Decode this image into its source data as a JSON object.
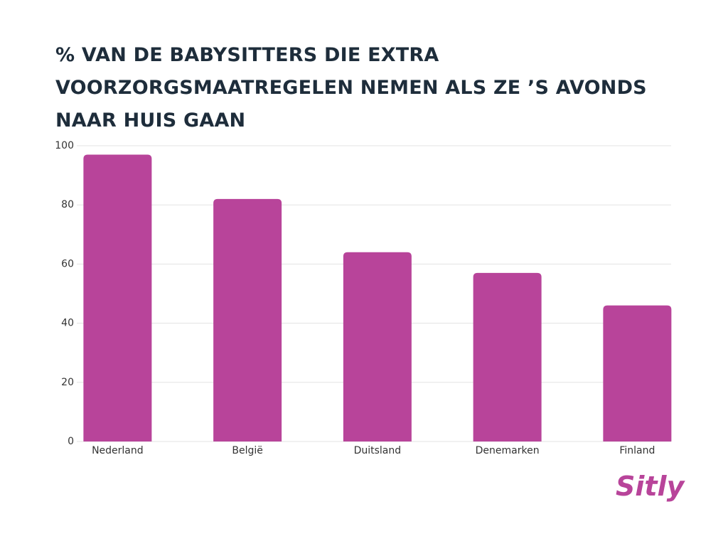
{
  "chart_data": {
    "type": "bar",
    "title": "% VAN DE BABYSITTERS DIE EXTRA VOORZORGSMAATREGELEN NEMEN ALS ZE ’S AVONDS NAAR HUIS GAAN",
    "categories": [
      "Nederland",
      "België",
      "Duitsland",
      "Denemarken",
      "Finland"
    ],
    "values": [
      97,
      82,
      64,
      57,
      46
    ],
    "color": "#b8449a",
    "ylim": [
      0,
      100
    ],
    "yticks": [
      0,
      20,
      40,
      60,
      80,
      100
    ],
    "grid": true
  },
  "logo": "Sitly"
}
